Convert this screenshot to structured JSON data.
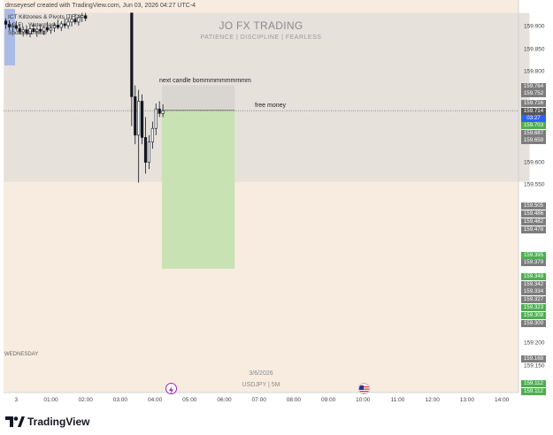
{
  "header": {
    "credit": "dmseyesef created with TradingView.com, Jun 03, 2026 04:27 UTC-4"
  },
  "indicators": [
    "ICT Killzones & Pivots [TFO]",
    "AG F) · Watermark",
    "SpdaX 21 Hour"
  ],
  "watermark": {
    "title": "JO FX TRADING",
    "subtitle": "PATIENCE  |  DISCIPLINE  |  FEARLESS",
    "date": "3/6/2026",
    "symbol": "USDJPY | 5M"
  },
  "annotations": {
    "next_candle": "next candle bommmmmmmmmm",
    "free_money": "free money"
  },
  "day_label": "WEDNESDAY",
  "colors": {
    "background": "#f8ece0",
    "session_box": "#e6e1db",
    "profit_zone": "#c8e2b4",
    "gray_box": "#d9d5d0",
    "tag_gray": "#7d7d7d",
    "tag_dark": "#555555",
    "tag_green": "#4caf50",
    "tag_blue": "#2962ff",
    "candle_up": "#ffffff",
    "candle_down": "#131722"
  },
  "chart_data": {
    "type": "candlestick",
    "symbol": "USDJPY",
    "timeframe": "5M",
    "ylim": [
      159.1,
      159.93
    ],
    "y_ticks": [
      159.9,
      159.85,
      159.8,
      159.6,
      159.55,
      159.2,
      159.15
    ],
    "x_ticks": [
      "3",
      "01:00",
      "02:00",
      "03:00",
      "04:00",
      "05:00",
      "06:00",
      "07:00",
      "08:00",
      "09:00",
      "10:00",
      "11:00",
      "12:00",
      "13:00",
      "14:00"
    ],
    "price_tags": [
      {
        "value": "159.764",
        "style": "gray"
      },
      {
        "value": "159.752",
        "style": "gray"
      },
      {
        "value": "159.716",
        "style": "gray"
      },
      {
        "value": "159.714",
        "style": "dark"
      },
      {
        "value": "03:27",
        "style": "dark"
      },
      {
        "value": "159.703",
        "style": "green"
      },
      {
        "value": "159.687",
        "style": "gray"
      },
      {
        "value": "159.659",
        "style": "gray"
      },
      {
        "value": "159.505",
        "style": "gray"
      },
      {
        "value": "159.486",
        "style": "gray"
      },
      {
        "value": "159.482",
        "style": "gray"
      },
      {
        "value": "159.478",
        "style": "gray"
      },
      {
        "value": "159.395",
        "style": "green"
      },
      {
        "value": "159.379",
        "style": "gray"
      },
      {
        "value": "159.348",
        "style": "green"
      },
      {
        "value": "159.342",
        "style": "gray"
      },
      {
        "value": "159.334",
        "style": "gray"
      },
      {
        "value": "159.327",
        "style": "gray"
      },
      {
        "value": "159.323",
        "style": "green"
      },
      {
        "value": "159.308",
        "style": "green"
      },
      {
        "value": "159.300",
        "style": "gray"
      },
      {
        "value": "159.168",
        "style": "gray"
      },
      {
        "value": "159.112",
        "style": "green"
      },
      {
        "value": "159.112",
        "style": "green"
      }
    ],
    "current_price": 159.714,
    "position": {
      "entry": 159.715,
      "target": 159.365,
      "stop": 159.77,
      "start_time": 4.2,
      "end_time": 6.3
    },
    "session_box": {
      "top": 159.93,
      "bottom": 159.557,
      "start_time": -0.35,
      "end_time": 14.8
    },
    "candles": [
      {
        "t": -0.3,
        "o": 159.912,
        "h": 159.918,
        "l": 159.895,
        "c": 159.905
      },
      {
        "t": -0.2,
        "o": 159.905,
        "h": 159.914,
        "l": 159.892,
        "c": 159.899
      },
      {
        "t": -0.1,
        "o": 159.899,
        "h": 159.908,
        "l": 159.886,
        "c": 159.902
      },
      {
        "t": 0.0,
        "o": 159.902,
        "h": 159.912,
        "l": 159.891,
        "c": 159.896
      },
      {
        "t": 0.1,
        "o": 159.896,
        "h": 159.905,
        "l": 159.884,
        "c": 159.888
      },
      {
        "t": 0.2,
        "o": 159.888,
        "h": 159.9,
        "l": 159.878,
        "c": 159.893
      },
      {
        "t": 0.3,
        "o": 159.893,
        "h": 159.902,
        "l": 159.88,
        "c": 159.885
      },
      {
        "t": 0.4,
        "o": 159.885,
        "h": 159.9,
        "l": 159.876,
        "c": 159.895
      },
      {
        "t": 0.5,
        "o": 159.895,
        "h": 159.906,
        "l": 159.884,
        "c": 159.889
      },
      {
        "t": 0.6,
        "o": 159.889,
        "h": 159.899,
        "l": 159.877,
        "c": 159.894
      },
      {
        "t": 0.7,
        "o": 159.894,
        "h": 159.905,
        "l": 159.885,
        "c": 159.89
      },
      {
        "t": 0.8,
        "o": 159.89,
        "h": 159.903,
        "l": 159.881,
        "c": 159.898
      },
      {
        "t": 0.9,
        "o": 159.898,
        "h": 159.91,
        "l": 159.888,
        "c": 159.892
      },
      {
        "t": 1.0,
        "o": 159.892,
        "h": 159.902,
        "l": 159.884,
        "c": 159.897
      },
      {
        "t": 1.1,
        "o": 159.897,
        "h": 159.909,
        "l": 159.888,
        "c": 159.903
      },
      {
        "t": 1.2,
        "o": 159.903,
        "h": 159.915,
        "l": 159.894,
        "c": 159.898
      },
      {
        "t": 1.3,
        "o": 159.898,
        "h": 159.912,
        "l": 159.89,
        "c": 159.906
      },
      {
        "t": 1.4,
        "o": 159.906,
        "h": 159.918,
        "l": 159.896,
        "c": 159.902
      },
      {
        "t": 1.5,
        "o": 159.902,
        "h": 159.92,
        "l": 159.895,
        "c": 159.91
      },
      {
        "t": 1.6,
        "o": 159.91,
        "h": 159.925,
        "l": 159.9,
        "c": 159.916
      },
      {
        "t": 1.7,
        "o": 159.916,
        "h": 159.928,
        "l": 159.905,
        "c": 159.91
      },
      {
        "t": 1.8,
        "o": 159.91,
        "h": 159.926,
        "l": 159.902,
        "c": 159.92
      },
      {
        "t": 1.9,
        "o": 159.92,
        "h": 159.93,
        "l": 159.91,
        "c": 159.924
      },
      {
        "t": 2.0,
        "o": 159.924,
        "h": 159.93,
        "l": 159.912,
        "c": 159.918
      },
      {
        "t": 3.33,
        "o": 159.93,
        "h": 159.93,
        "l": 159.68,
        "c": 159.745
      },
      {
        "t": 3.43,
        "o": 159.745,
        "h": 159.77,
        "l": 159.64,
        "c": 159.66
      },
      {
        "t": 3.53,
        "o": 159.66,
        "h": 159.76,
        "l": 159.555,
        "c": 159.735
      },
      {
        "t": 3.63,
        "o": 159.735,
        "h": 159.75,
        "l": 159.64,
        "c": 159.655
      },
      {
        "t": 3.73,
        "o": 159.655,
        "h": 159.7,
        "l": 159.575,
        "c": 159.6
      },
      {
        "t": 3.83,
        "o": 159.6,
        "h": 159.66,
        "l": 159.585,
        "c": 159.645
      },
      {
        "t": 3.93,
        "o": 159.645,
        "h": 159.69,
        "l": 159.63,
        "c": 159.675
      },
      {
        "t": 4.03,
        "o": 159.675,
        "h": 159.73,
        "l": 159.66,
        "c": 159.718
      },
      {
        "t": 4.13,
        "o": 159.718,
        "h": 159.735,
        "l": 159.7,
        "c": 159.708
      },
      {
        "t": 4.23,
        "o": 159.708,
        "h": 159.728,
        "l": 159.7,
        "c": 159.714
      }
    ]
  }
}
